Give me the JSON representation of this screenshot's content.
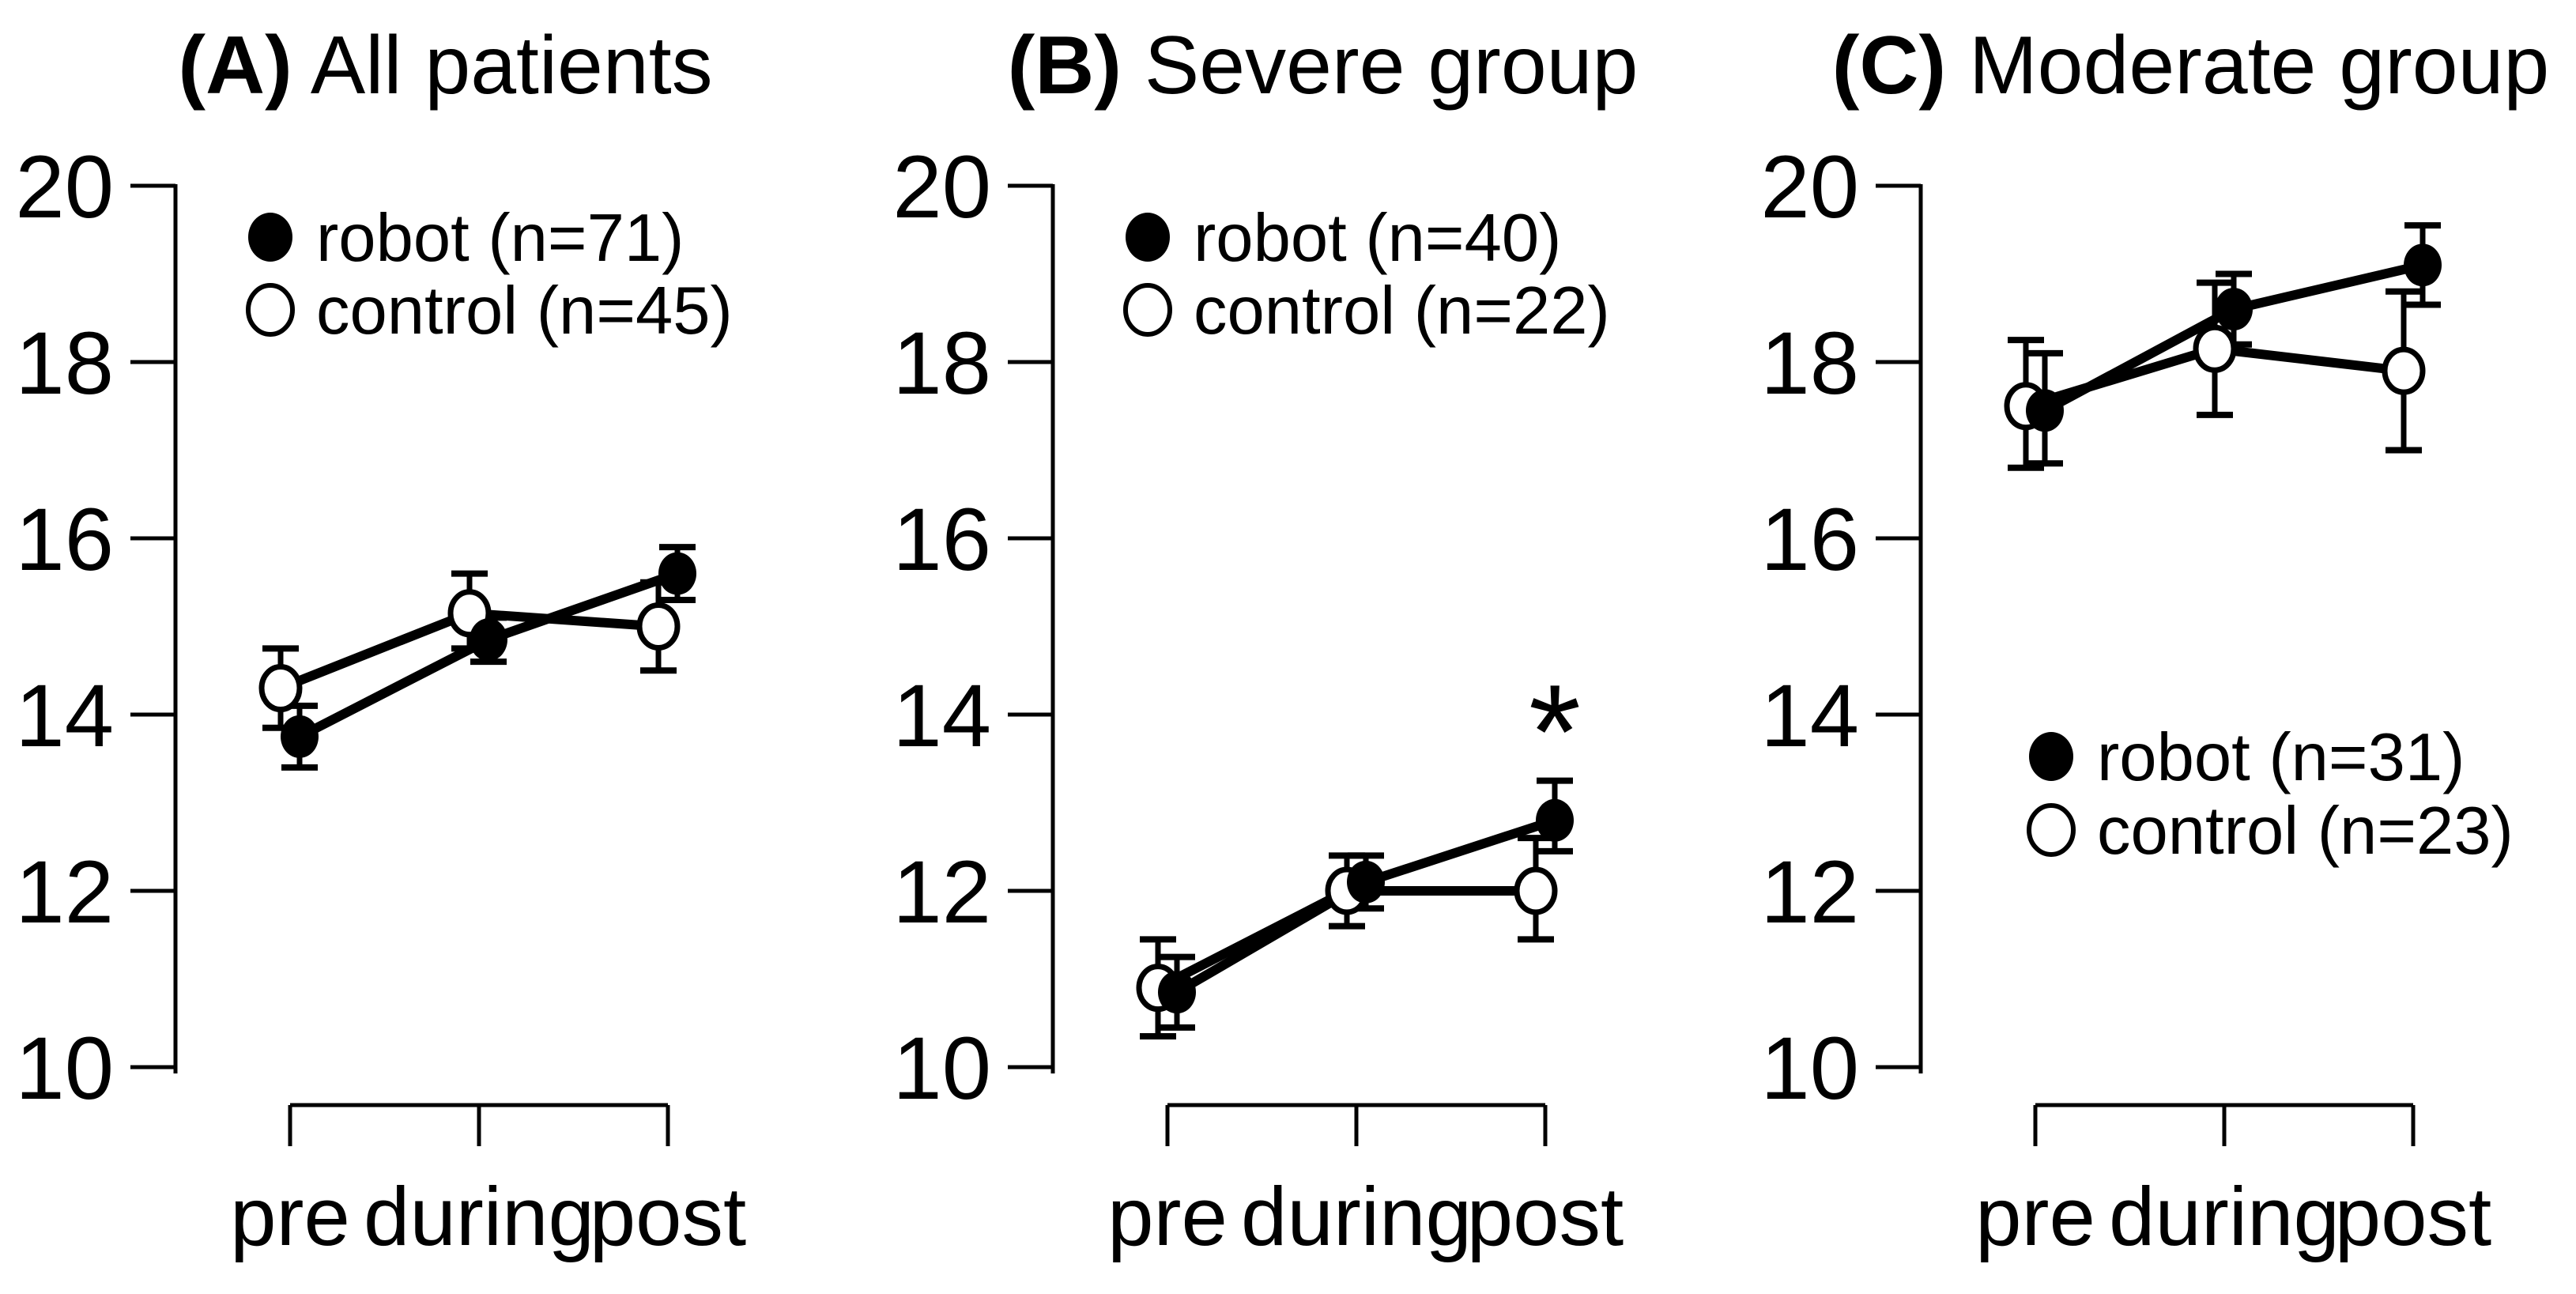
{
  "chart_data": {
    "type": "line",
    "description": "Three-panel point-and-error-bar line chart comparing robot vs control groups at pre, during, post timepoints",
    "categories": [
      "pre",
      "during",
      "post"
    ],
    "y_axis": {
      "ticks": [
        20,
        18,
        16,
        14,
        12,
        10
      ],
      "min": 10,
      "max": 20
    },
    "colors": {
      "background": "#ffffff",
      "ink": "#000000"
    },
    "panels": [
      {
        "panel_label": "(A)",
        "panel_title": "All patients",
        "legend_position": "top-left",
        "legend": [
          {
            "series": "robot",
            "label": "robot (n=71)"
          },
          {
            "series": "control",
            "label": "control (n=45)"
          }
        ],
        "series": [
          {
            "name": "control",
            "marker": "open",
            "values": [
              14.3,
              15.15,
              15.0
            ],
            "err_up": [
              0.45,
              0.45,
              0.5
            ],
            "err_down": [
              0.45,
              0.4,
              0.5
            ]
          },
          {
            "name": "robot",
            "marker": "filled",
            "values": [
              13.75,
              14.85,
              15.6
            ],
            "err_up": [
              0.35,
              0.25,
              0.3
            ],
            "err_down": [
              0.35,
              0.25,
              0.3
            ]
          }
        ],
        "annotation": null
      },
      {
        "panel_label": "(B)",
        "panel_title": "Severe group",
        "legend_position": "top-left",
        "legend": [
          {
            "series": "robot",
            "label": "robot (n=40)"
          },
          {
            "series": "control",
            "label": "control (n=22)"
          }
        ],
        "series": [
          {
            "name": "control",
            "marker": "open",
            "values": [
              10.9,
              12.0,
              12.0
            ],
            "err_up": [
              0.55,
              0.4,
              0.6
            ],
            "err_down": [
              0.55,
              0.4,
              0.55
            ]
          },
          {
            "name": "robot",
            "marker": "filled",
            "values": [
              10.85,
              12.1,
              12.8
            ],
            "err_up": [
              0.4,
              0.3,
              0.45
            ],
            "err_down": [
              0.4,
              0.3,
              0.35
            ]
          }
        ],
        "annotation": {
          "text": "*",
          "category_index": 2,
          "series": "robot",
          "value": 13.8
        }
      },
      {
        "panel_label": "(C)",
        "panel_title": "Moderate group",
        "legend_position": "middle-left",
        "legend": [
          {
            "series": "robot",
            "label": "robot (n=31)"
          },
          {
            "series": "control",
            "label": "control (n=23)"
          }
        ],
        "series": [
          {
            "name": "control",
            "marker": "open",
            "values": [
              17.5,
              18.15,
              17.9
            ],
            "err_up": [
              0.75,
              0.75,
              0.9
            ],
            "err_down": [
              0.7,
              0.75,
              0.9
            ]
          },
          {
            "name": "robot",
            "marker": "filled",
            "values": [
              17.45,
              18.6,
              19.1
            ],
            "err_up": [
              0.65,
              0.4,
              0.45
            ],
            "err_down": [
              0.6,
              0.4,
              0.45
            ]
          }
        ],
        "annotation": null
      }
    ]
  }
}
